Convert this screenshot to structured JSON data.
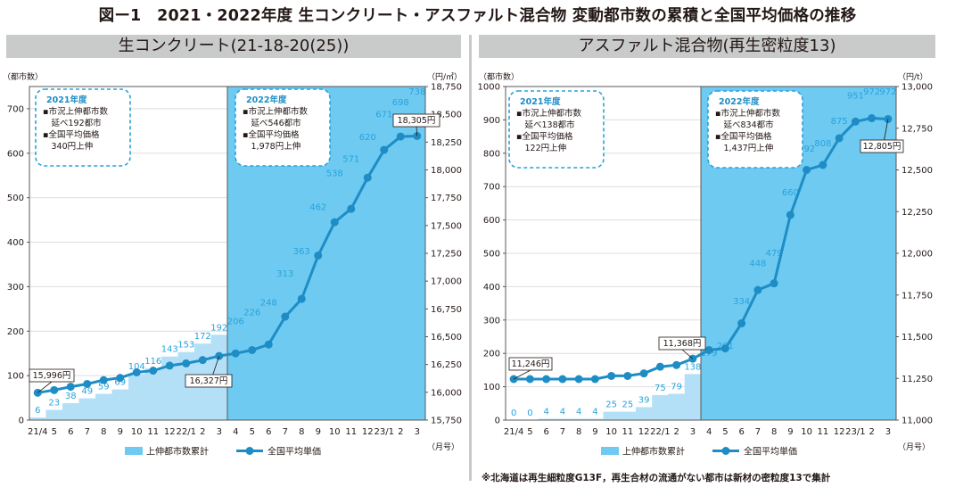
{
  "title": "図ー1　2021・2022年度 生コンクリート・アスファルト混合物 変動都市数の累積と全国平均価格の推移",
  "footnote": "※北海道は再生細粒度G13F，再生合材の流通がない都市は新材の密粒度13で集計",
  "colors": {
    "bar_light": "#b3e0f7",
    "bar_dark": "#6ecaf0",
    "line": "#1e8dc6",
    "callout_border": "#2aa1d9",
    "bar_label": "#29a3dd",
    "grid": "#dcdddd"
  },
  "chart_data": [
    {
      "type": "bar+line",
      "panel_title": "生コンクリート(21-18-20(25))",
      "left_axis_label": "（都市数）",
      "right_axis_label": "（円/㎥）",
      "x_axis_unit": "（月号）",
      "left_ylim": [
        0,
        750
      ],
      "left_ticks": [
        0,
        100,
        200,
        300,
        400,
        500,
        600,
        700
      ],
      "right_ylim": [
        15750,
        18750
      ],
      "right_ticks": [
        "15,750",
        "16,000",
        "16,250",
        "16,500",
        "16,750",
        "17,000",
        "17,250",
        "17,500",
        "17,750",
        "18,000",
        "18,250",
        "18,500",
        "18,750"
      ],
      "categories": [
        "21/4",
        "5",
        "6",
        "7",
        "8",
        "9",
        "10",
        "11",
        "12",
        "22/1",
        "2",
        "3",
        "4",
        "5",
        "6",
        "7",
        "8",
        "9",
        "10",
        "11",
        "12",
        "23/1",
        "2",
        "3"
      ],
      "fy_split_index": 12,
      "series": [
        {
          "name": "上伸都市数累計",
          "kind": "bar",
          "values": [
            6,
            23,
            38,
            49,
            59,
            69,
            104,
            116,
            143,
            153,
            172,
            192,
            206,
            226,
            248,
            313,
            363,
            462,
            538,
            571,
            620,
            671,
            698,
            738
          ]
        },
        {
          "name": "全国平均単価",
          "kind": "line",
          "values": [
            15996,
            16020,
            16050,
            16075,
            16110,
            16130,
            16180,
            16195,
            16240,
            16260,
            16290,
            16327,
            16350,
            16380,
            16430,
            16680,
            16840,
            17230,
            17530,
            17650,
            17930,
            18180,
            18300,
            18305
          ]
        }
      ],
      "point_labels": [
        {
          "index": 0,
          "text": "15,996円"
        },
        {
          "index": 11,
          "text": "16,327円"
        },
        {
          "index": 23,
          "text": "18,305円"
        }
      ],
      "callouts": [
        {
          "heading": "2021年度",
          "lines": [
            "▪市況上伸都市数",
            "　延べ192都市",
            "▪全国平均価格",
            "　340円上伸"
          ]
        },
        {
          "heading": "2022年度",
          "lines": [
            "▪市況上伸都市数",
            "　延べ546都市",
            "▪全国平均価格",
            "　1,978円上伸"
          ]
        }
      ]
    },
    {
      "type": "bar+line",
      "panel_title": "アスファルト混合物(再生密粒度13)",
      "left_axis_label": "（都市数）",
      "right_axis_label": "（円/t）",
      "x_axis_unit": "（月号）",
      "left_ylim": [
        0,
        1000
      ],
      "left_ticks": [
        0,
        100,
        200,
        300,
        400,
        500,
        600,
        700,
        800,
        900,
        1000
      ],
      "right_ylim": [
        11000,
        13000
      ],
      "right_ticks": [
        "11,000",
        "11,250",
        "11,500",
        "11,750",
        "12,000",
        "12,250",
        "12,500",
        "12,750",
        "13,000"
      ],
      "categories": [
        "21/4",
        "5",
        "6",
        "7",
        "8",
        "9",
        "10",
        "11",
        "12",
        "22/1",
        "2",
        "3",
        "4",
        "5",
        "6",
        "7",
        "8",
        "9",
        "10",
        "11",
        "12",
        "23/1",
        "2",
        "3"
      ],
      "fy_split_index": 12,
      "series": [
        {
          "name": "上伸都市数累計",
          "kind": "bar",
          "values": [
            0,
            0,
            4,
            4,
            4,
            4,
            25,
            25,
            39,
            75,
            79,
            138,
            179,
            201,
            334,
            448,
            479,
            660,
            792,
            808,
            875,
            951,
            972,
            972
          ]
        },
        {
          "name": "全国平均単価",
          "kind": "line",
          "values": [
            11246,
            11246,
            11246,
            11246,
            11246,
            11246,
            11265,
            11265,
            11280,
            11320,
            11330,
            11368,
            11420,
            11430,
            11580,
            11780,
            11820,
            12230,
            12500,
            12530,
            12690,
            12790,
            12810,
            12805
          ]
        }
      ],
      "point_labels": [
        {
          "index": 0,
          "text": "11,246円"
        },
        {
          "index": 11,
          "text": "11,368円"
        },
        {
          "index": 23,
          "text": "12,805円"
        }
      ],
      "callouts": [
        {
          "heading": "2021年度",
          "lines": [
            "▪市況上伸都市数",
            "　延べ138都市",
            "▪全国平均価格",
            "　122円上伸"
          ]
        },
        {
          "heading": "2022年度",
          "lines": [
            "▪市況上伸都市数",
            "　延べ834都市",
            "▪全国平均価格",
            "　1,437円上伸"
          ]
        }
      ]
    }
  ]
}
